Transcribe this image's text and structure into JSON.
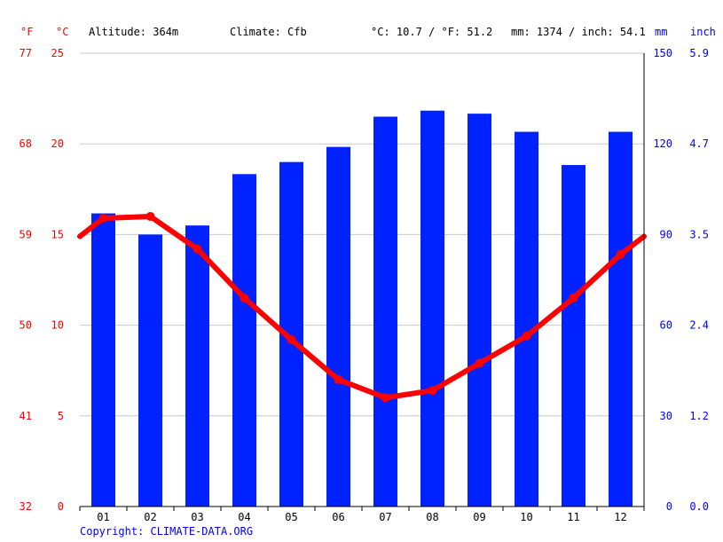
{
  "header": {
    "f_unit": "°F",
    "c_unit": "°C",
    "altitude": "Altitude: 364m",
    "climate": "Climate: Cfb",
    "avg_temp": "°C: 10.7 / °F: 51.2",
    "precip_total": "mm: 1374 / inch: 54.1",
    "mm_unit": "mm",
    "inch_unit": "inch"
  },
  "axes": {
    "fahrenheit_ticks": [
      "77",
      "68",
      "59",
      "50",
      "41",
      "32"
    ],
    "celsius_ticks": [
      "25",
      "20",
      "15",
      "10",
      "5",
      "0"
    ],
    "mm_ticks": [
      "150",
      "120",
      "90",
      "60",
      "30",
      "0"
    ],
    "inch_ticks": [
      "5.9",
      "4.7",
      "3.5",
      "2.4",
      "1.2",
      "0.0"
    ]
  },
  "copyright": "Copyright: CLIMATE-DATA.ORG",
  "colors": {
    "precip": "#0022ff",
    "temp": "#ff0000",
    "grid": "#c8c8c8",
    "tick_text_left": "#ff0000",
    "tick_text_right": "#0000ff"
  },
  "chart_data": {
    "type": "bar",
    "categories": [
      "01",
      "02",
      "03",
      "04",
      "05",
      "06",
      "07",
      "08",
      "09",
      "10",
      "11",
      "12"
    ],
    "series": [
      {
        "type": "bar",
        "axis": "mm",
        "values": [
          97,
          90,
          93,
          110,
          114,
          119,
          129,
          131,
          130,
          124,
          113,
          124
        ]
      },
      {
        "type": "line",
        "axis": "°C",
        "values": [
          15.9,
          16.0,
          14.2,
          11.5,
          9.2,
          7.0,
          6.0,
          6.4,
          7.9,
          9.4,
          11.5,
          13.9
        ]
      }
    ],
    "ylim_temp_c": [
      0,
      25
    ],
    "ylim_precip_mm": [
      0,
      150
    ],
    "grid": true
  }
}
